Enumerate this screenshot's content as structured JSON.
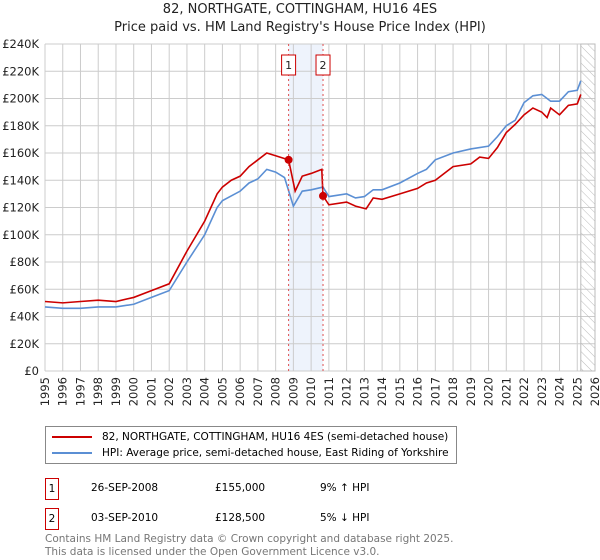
{
  "chart_data": {
    "type": "line",
    "title": "82, NORTHGATE, COTTINGHAM, HU16 4ES",
    "subtitle": "Price paid vs. HM Land Registry's House Price Index (HPI)",
    "xlim": [
      1995,
      2026
    ],
    "ylim": [
      0,
      240000
    ],
    "yticks": [
      0,
      20000,
      40000,
      60000,
      80000,
      100000,
      120000,
      140000,
      160000,
      180000,
      200000,
      220000,
      240000
    ],
    "ytick_labels": [
      "£0",
      "£20K",
      "£40K",
      "£60K",
      "£80K",
      "£100K",
      "£120K",
      "£140K",
      "£160K",
      "£180K",
      "£200K",
      "£220K",
      "£240K"
    ],
    "xticks": [
      "1995",
      "1996",
      "1997",
      "1998",
      "1999",
      "2000",
      "2001",
      "2002",
      "2003",
      "2004",
      "2005",
      "2006",
      "2007",
      "2008",
      "2009",
      "2010",
      "2011",
      "2012",
      "2013",
      "2014",
      "2015",
      "2016",
      "2017",
      "2018",
      "2019",
      "2020",
      "2021",
      "2022",
      "2023",
      "2024",
      "2025",
      "2026"
    ],
    "grid": true,
    "series": [
      {
        "name": "82, NORTHGATE, COTTINGHAM, HU16 4ES (semi-detached house)",
        "color": "#cc0000",
        "x": [
          1995,
          1996,
          1997,
          1998,
          1999,
          2000,
          2001,
          2002,
          2003,
          2004,
          2004.7,
          2005,
          2005.5,
          2006,
          2006.5,
          2007,
          2007.5,
          2008,
          2008.73,
          2009.1,
          2009.5,
          2010,
          2010.6,
          2010.67,
          2011,
          2012,
          2012.5,
          2013.1,
          2013.5,
          2014,
          2015,
          2016,
          2016.5,
          2017,
          2018,
          2019,
          2019.5,
          2020,
          2020.5,
          2021,
          2021.5,
          2022,
          2022.5,
          2023,
          2023.3,
          2023.5,
          2024,
          2024.5,
          2025,
          2025.2
        ],
        "y": [
          51000,
          50000,
          51000,
          52000,
          51000,
          54000,
          59000,
          64000,
          88000,
          110000,
          130000,
          135000,
          140000,
          143000,
          150000,
          155000,
          160000,
          158000,
          155000,
          132000,
          143000,
          145000,
          148000,
          128500,
          122000,
          124000,
          121000,
          119000,
          127000,
          126000,
          130000,
          134000,
          138000,
          140000,
          150000,
          152000,
          157000,
          156000,
          164000,
          175000,
          181000,
          188000,
          193000,
          190000,
          186000,
          193000,
          188000,
          195000,
          196000,
          203000
        ]
      },
      {
        "name": "HPI: Average price, semi-detached house, East Riding of Yorkshire",
        "color": "#5b8fd4",
        "x": [
          1995,
          1996,
          1997,
          1998,
          1999,
          2000,
          2001,
          2002,
          2003,
          2004,
          2004.7,
          2005,
          2006,
          2006.5,
          2007,
          2007.5,
          2008,
          2008.5,
          2009,
          2009.5,
          2010,
          2010.67,
          2011,
          2012,
          2012.5,
          2013,
          2013.5,
          2014,
          2015,
          2016,
          2016.5,
          2017,
          2018,
          2019,
          2020,
          2020.5,
          2021,
          2021.5,
          2022,
          2022.5,
          2023,
          2023.5,
          2024,
          2024.5,
          2025,
          2025.2
        ],
        "y": [
          47000,
          46000,
          46000,
          47000,
          47000,
          49000,
          54000,
          59000,
          80000,
          100000,
          120000,
          125000,
          132000,
          138000,
          141000,
          148000,
          146000,
          142000,
          121000,
          132000,
          133000,
          135000,
          128000,
          130000,
          127000,
          128000,
          133000,
          133000,
          138000,
          145000,
          148000,
          155000,
          160000,
          163000,
          165000,
          172000,
          180000,
          184000,
          197000,
          202000,
          203000,
          198000,
          198000,
          205000,
          206000,
          213000
        ]
      }
    ],
    "sales": [
      {
        "label": "1",
        "x": 2008.73,
        "y": 155000,
        "date": "26-SEP-2008",
        "price": "£155,000",
        "hpi": "9% ↑ HPI"
      },
      {
        "label": "2",
        "x": 2010.67,
        "y": 128500,
        "date": "03-SEP-2010",
        "price": "£128,500",
        "hpi": "5% ↓ HPI"
      }
    ],
    "forecast_start": 2025.2,
    "footer1": "Contains HM Land Registry data © Crown copyright and database right 2025.",
    "footer2": "This data is licensed under the Open Government Licence v3.0."
  }
}
